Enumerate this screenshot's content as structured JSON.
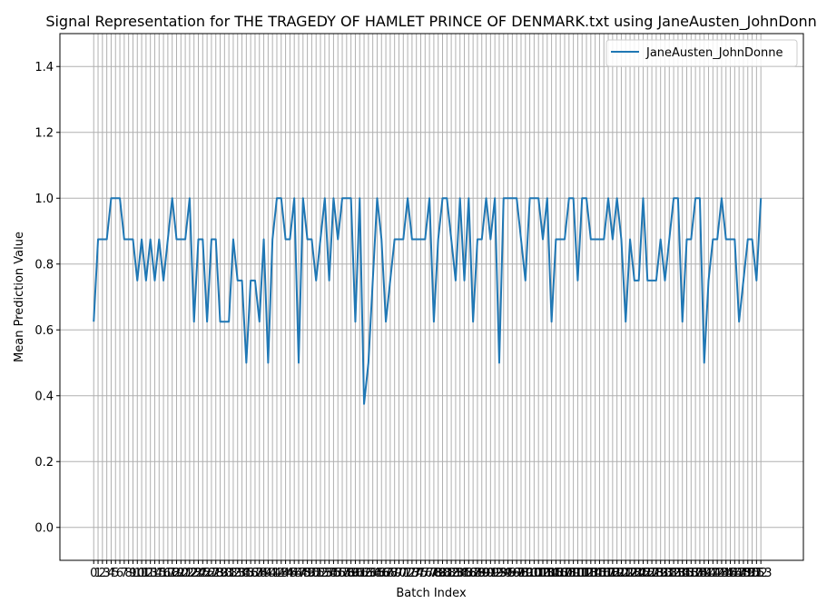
{
  "chart_data": {
    "type": "line",
    "title": "Signal Representation for THE TRAGEDY OF HAMLET PRINCE OF DENMARK.txt using JaneAusten_JohnDonne",
    "xlabel": "Batch Index",
    "ylabel": "Mean Prediction Value",
    "ylim": [
      -0.1,
      1.5
    ],
    "yticks": [
      0.0,
      0.2,
      0.4,
      0.6,
      0.8,
      1.0,
      1.2,
      1.4
    ],
    "ytick_labels": [
      "0.0",
      "0.2",
      "0.4",
      "0.6",
      "0.8",
      "1.0",
      "1.2",
      "1.4"
    ],
    "xlim": [
      -7.75,
      162.75
    ],
    "grid": true,
    "legend_position": "top-right",
    "colors": {
      "line": "#1f77b4",
      "grid": "#b0b0b0"
    },
    "series": [
      {
        "name": "JaneAusten_JohnDonne",
        "x": [
          0,
          1,
          2,
          3,
          4,
          5,
          6,
          7,
          8,
          9,
          10,
          11,
          12,
          13,
          14,
          15,
          16,
          17,
          18,
          19,
          20,
          21,
          22,
          23,
          24,
          25,
          26,
          27,
          28,
          29,
          30,
          31,
          32,
          33,
          34,
          35,
          36,
          37,
          38,
          39,
          40,
          41,
          42,
          43,
          44,
          45,
          46,
          47,
          48,
          49,
          50,
          51,
          52,
          53,
          54,
          55,
          56,
          57,
          58,
          59,
          60,
          61,
          62,
          63,
          64,
          65,
          66,
          67,
          68,
          69,
          70,
          71,
          72,
          73,
          74,
          75,
          76,
          77,
          78,
          79,
          80,
          81,
          82,
          83,
          84,
          85,
          86,
          87,
          88,
          89,
          90,
          91,
          92,
          93,
          94,
          95,
          96,
          97,
          98,
          99,
          100,
          101,
          102,
          103,
          104,
          105,
          106,
          107,
          108,
          109,
          110,
          111,
          112,
          113,
          114,
          115,
          116,
          117,
          118,
          119,
          120,
          121,
          122,
          123,
          124,
          125,
          126,
          127,
          128,
          129,
          130,
          131,
          132,
          133,
          134,
          135,
          136,
          137,
          138,
          139,
          140,
          141,
          142,
          143,
          144,
          145,
          146,
          147,
          148,
          149,
          150,
          151,
          152,
          153
        ],
        "values": [
          0.625,
          0.875,
          0.875,
          0.875,
          1.0,
          1.0,
          1.0,
          0.875,
          0.875,
          0.875,
          0.75,
          0.875,
          0.75,
          0.875,
          0.75,
          0.875,
          0.75,
          0.875,
          1.0,
          0.875,
          0.875,
          0.875,
          1.0,
          0.625,
          0.875,
          0.875,
          0.625,
          0.875,
          0.875,
          0.625,
          0.625,
          0.625,
          0.875,
          0.75,
          0.75,
          0.5,
          0.75,
          0.75,
          0.625,
          0.875,
          0.5,
          0.875,
          1.0,
          1.0,
          0.875,
          0.875,
          1.0,
          0.5,
          1.0,
          0.875,
          0.875,
          0.75,
          0.875,
          1.0,
          0.75,
          1.0,
          0.875,
          1.0,
          1.0,
          1.0,
          0.625,
          1.0,
          0.375,
          0.5,
          0.75,
          1.0,
          0.875,
          0.625,
          0.75,
          0.875,
          0.875,
          0.875,
          1.0,
          0.875,
          0.875,
          0.875,
          0.875,
          1.0,
          0.625,
          0.875,
          1.0,
          1.0,
          0.875,
          0.75,
          1.0,
          0.75,
          1.0,
          0.625,
          0.875,
          0.875,
          1.0,
          0.875,
          1.0,
          0.5,
          1.0,
          1.0,
          1.0,
          1.0,
          0.875,
          0.75,
          1.0,
          1.0,
          1.0,
          0.875,
          1.0,
          0.625,
          0.875,
          0.875,
          0.875,
          1.0,
          1.0,
          0.75,
          1.0,
          1.0,
          0.875,
          0.875,
          0.875,
          0.875,
          1.0,
          0.875,
          1.0,
          0.875,
          0.625,
          0.875,
          0.75,
          0.75,
          1.0,
          0.75,
          0.75,
          0.75,
          0.875,
          0.75,
          0.875,
          1.0,
          1.0,
          0.625,
          0.875,
          0.875,
          1.0,
          1.0,
          0.5,
          0.75,
          0.875,
          0.875,
          1.0,
          0.875,
          0.875,
          0.875,
          0.625,
          0.75,
          0.875,
          0.875,
          0.75,
          1.0
        ]
      }
    ]
  }
}
